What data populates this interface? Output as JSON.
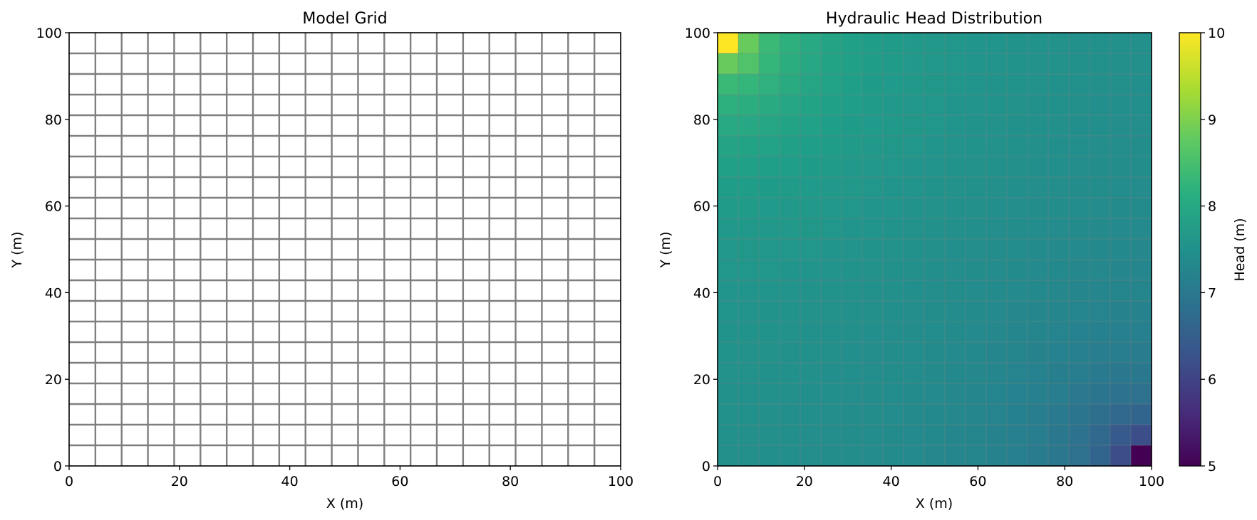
{
  "chart_data": [
    {
      "type": "table",
      "title": "Model Grid",
      "xlabel": "X (m)",
      "ylabel": "Y (m)",
      "xlim": [
        0,
        100
      ],
      "ylim": [
        0,
        100
      ],
      "xticks": [
        0,
        20,
        40,
        60,
        80,
        100
      ],
      "yticks": [
        0,
        20,
        40,
        60,
        80,
        100
      ],
      "grid_ncols": 21,
      "grid_nrows": 21,
      "grid_line_color": "#7f7f7f"
    },
    {
      "type": "heatmap",
      "title": "Hydraulic Head Distribution",
      "xlabel": "X (m)",
      "ylabel": "Y (m)",
      "xlim": [
        0,
        100
      ],
      "ylim": [
        0,
        100
      ],
      "xticks": [
        0,
        20,
        40,
        60,
        80,
        100
      ],
      "yticks": [
        0,
        20,
        40,
        60,
        80,
        100
      ],
      "ncols": 21,
      "nrows": 21,
      "colormap": "viridis",
      "colorbar_label": "Head (m)",
      "colorbar_range": [
        5,
        10
      ],
      "colorbar_ticks": [
        5,
        6,
        7,
        8,
        9,
        10
      ],
      "source_cell": {
        "row": 0,
        "col": 0,
        "value": 10
      },
      "sink_cell": {
        "row": 20,
        "col": 20,
        "value": 5
      }
    }
  ]
}
